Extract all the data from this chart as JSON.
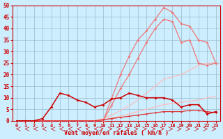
{
  "x": [
    0,
    1,
    2,
    3,
    4,
    5,
    6,
    7,
    8,
    9,
    10,
    11,
    12,
    13,
    14,
    15,
    16,
    17,
    18,
    19,
    20,
    21,
    22,
    23
  ],
  "line_trend1": [
    0,
    0,
    0,
    0,
    0,
    0,
    0,
    0,
    0,
    0,
    0.5,
    1.2,
    2,
    3,
    4,
    5,
    6,
    7,
    7.5,
    8,
    8.5,
    9,
    10,
    10.5
  ],
  "line_trend2": [
    0,
    0,
    0,
    0,
    0,
    0,
    0,
    0,
    0,
    0,
    1,
    2.5,
    4.5,
    6.5,
    9,
    12,
    15,
    18,
    19,
    20,
    22,
    24,
    25,
    25
  ],
  "line_med1": [
    0,
    0,
    0,
    0,
    0,
    0,
    0,
    0,
    0,
    0,
    0,
    10,
    20,
    28,
    35,
    39,
    44,
    49,
    47,
    42,
    41,
    35,
    34,
    25
  ],
  "line_med2": [
    0,
    0,
    0,
    0,
    0,
    0,
    0,
    0,
    0,
    0,
    0,
    7,
    14,
    20,
    27,
    34,
    40,
    44,
    43,
    34,
    35,
    25,
    24,
    25
  ],
  "line_dark": [
    0,
    0,
    0,
    1,
    6,
    12,
    11,
    9,
    8,
    6,
    7,
    9.5,
    10,
    12,
    11,
    10,
    10,
    10,
    9,
    6,
    7,
    7,
    3,
    4
  ],
  "line_base": [
    0,
    0,
    0,
    0,
    0,
    0,
    0,
    0,
    0,
    0,
    0.5,
    1,
    1.5,
    2,
    2.5,
    3,
    3.5,
    4,
    4,
    4,
    4.5,
    4.5,
    4,
    3.5
  ],
  "bg_color": "#cceeff",
  "grid_color": "#99bbcc",
  "line_color_dark": "#cc0000",
  "line_color_mid": "#ee7777",
  "line_color_light": "#ffbbbb",
  "line_color_base": "#dd3333",
  "xlabel": "Vent moyen/en rafales ( km/h )",
  "xlim": [
    -0.5,
    23.5
  ],
  "ylim": [
    0,
    50
  ],
  "yticks": [
    0,
    5,
    10,
    15,
    20,
    25,
    30,
    35,
    40,
    45,
    50
  ],
  "xticks": [
    0,
    1,
    2,
    3,
    4,
    5,
    6,
    7,
    8,
    9,
    10,
    11,
    12,
    13,
    14,
    15,
    16,
    17,
    18,
    19,
    20,
    21,
    22,
    23
  ]
}
